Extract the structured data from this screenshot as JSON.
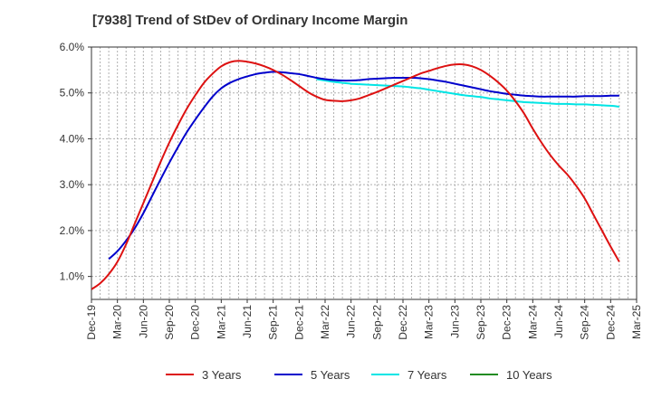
{
  "chart_data": {
    "type": "line",
    "title": "[7938]  Trend of StDev of Ordinary Income Margin",
    "xlabel": "",
    "ylabel": "",
    "ylim": [
      0.5,
      6.0
    ],
    "grid": true,
    "legend_position": "bottom",
    "x_ticks": [
      "Dec-19",
      "Mar-20",
      "Jun-20",
      "Sep-20",
      "Dec-20",
      "Mar-21",
      "Jun-21",
      "Sep-21",
      "Dec-21",
      "Mar-22",
      "Jun-22",
      "Sep-22",
      "Dec-22",
      "Mar-23",
      "Jun-23",
      "Sep-23",
      "Dec-23",
      "Mar-24",
      "Jun-24",
      "Sep-24",
      "Dec-24",
      "Mar-25"
    ],
    "y_ticks": [
      {
        "value": 1.0,
        "label": "1.0%"
      },
      {
        "value": 2.0,
        "label": "2.0%"
      },
      {
        "value": 3.0,
        "label": "3.0%"
      },
      {
        "value": 4.0,
        "label": "4.0%"
      },
      {
        "value": 5.0,
        "label": "5.0%"
      },
      {
        "value": 6.0,
        "label": "6.0%"
      }
    ],
    "series": [
      {
        "name": "3 Years",
        "color": "#dd1111",
        "points": [
          [
            "Dec-19",
            0.72
          ],
          [
            "Jan-20",
            0.85
          ],
          [
            "Feb-20",
            1.05
          ],
          [
            "Mar-20",
            1.32
          ],
          [
            "Apr-20",
            1.7
          ],
          [
            "May-20",
            2.15
          ],
          [
            "Jun-20",
            2.6
          ],
          [
            "Jul-20",
            3.05
          ],
          [
            "Aug-20",
            3.5
          ],
          [
            "Sep-20",
            3.92
          ],
          [
            "Oct-20",
            4.3
          ],
          [
            "Nov-20",
            4.65
          ],
          [
            "Dec-20",
            4.95
          ],
          [
            "Jan-21",
            5.22
          ],
          [
            "Feb-21",
            5.42
          ],
          [
            "Mar-21",
            5.58
          ],
          [
            "Apr-21",
            5.67
          ],
          [
            "May-21",
            5.7
          ],
          [
            "Jun-21",
            5.68
          ],
          [
            "Jul-21",
            5.64
          ],
          [
            "Aug-21",
            5.58
          ],
          [
            "Sep-21",
            5.5
          ],
          [
            "Oct-21",
            5.4
          ],
          [
            "Nov-21",
            5.28
          ],
          [
            "Dec-21",
            5.15
          ],
          [
            "Jan-22",
            5.02
          ],
          [
            "Feb-22",
            4.92
          ],
          [
            "Mar-22",
            4.85
          ],
          [
            "Apr-22",
            4.83
          ],
          [
            "May-22",
            4.82
          ],
          [
            "Jun-22",
            4.84
          ],
          [
            "Jul-22",
            4.88
          ],
          [
            "Aug-22",
            4.95
          ],
          [
            "Sep-22",
            5.02
          ],
          [
            "Oct-22",
            5.1
          ],
          [
            "Nov-22",
            5.18
          ],
          [
            "Dec-22",
            5.26
          ],
          [
            "Jan-23",
            5.34
          ],
          [
            "Feb-23",
            5.42
          ],
          [
            "Mar-23",
            5.48
          ],
          [
            "Apr-23",
            5.54
          ],
          [
            "May-23",
            5.59
          ],
          [
            "Jun-23",
            5.62
          ],
          [
            "Jul-23",
            5.62
          ],
          [
            "Aug-23",
            5.58
          ],
          [
            "Sep-23",
            5.5
          ],
          [
            "Oct-23",
            5.38
          ],
          [
            "Nov-23",
            5.23
          ],
          [
            "Dec-23",
            5.05
          ],
          [
            "Jan-24",
            4.82
          ],
          [
            "Feb-24",
            4.55
          ],
          [
            "Mar-24",
            4.22
          ],
          [
            "Apr-24",
            3.92
          ],
          [
            "May-24",
            3.65
          ],
          [
            "Jun-24",
            3.42
          ],
          [
            "Jul-24",
            3.22
          ],
          [
            "Aug-24",
            2.98
          ],
          [
            "Sep-24",
            2.7
          ],
          [
            "Oct-24",
            2.35
          ],
          [
            "Nov-24",
            2.0
          ],
          [
            "Dec-24",
            1.65
          ],
          [
            "Jan-25",
            1.32
          ]
        ]
      },
      {
        "name": "5 Years",
        "color": "#0000cc",
        "points": [
          [
            "Feb-20",
            1.38
          ],
          [
            "Mar-20",
            1.55
          ],
          [
            "Apr-20",
            1.78
          ],
          [
            "May-20",
            2.05
          ],
          [
            "Jun-20",
            2.38
          ],
          [
            "Jul-20",
            2.75
          ],
          [
            "Aug-20",
            3.12
          ],
          [
            "Sep-20",
            3.48
          ],
          [
            "Oct-20",
            3.82
          ],
          [
            "Nov-20",
            4.14
          ],
          [
            "Dec-20",
            4.42
          ],
          [
            "Jan-21",
            4.68
          ],
          [
            "Feb-21",
            4.92
          ],
          [
            "Mar-21",
            5.1
          ],
          [
            "Apr-21",
            5.22
          ],
          [
            "May-21",
            5.3
          ],
          [
            "Jun-21",
            5.36
          ],
          [
            "Jul-21",
            5.41
          ],
          [
            "Aug-21",
            5.44
          ],
          [
            "Sep-21",
            5.46
          ],
          [
            "Oct-21",
            5.45
          ],
          [
            "Nov-21",
            5.43
          ],
          [
            "Dec-21",
            5.41
          ],
          [
            "Jan-22",
            5.37
          ],
          [
            "Feb-22",
            5.33
          ],
          [
            "Mar-22",
            5.3
          ],
          [
            "Apr-22",
            5.28
          ],
          [
            "May-22",
            5.27
          ],
          [
            "Jun-22",
            5.27
          ],
          [
            "Jul-22",
            5.28
          ],
          [
            "Aug-22",
            5.3
          ],
          [
            "Sep-22",
            5.31
          ],
          [
            "Oct-22",
            5.32
          ],
          [
            "Nov-22",
            5.33
          ],
          [
            "Dec-22",
            5.33
          ],
          [
            "Jan-23",
            5.33
          ],
          [
            "Feb-23",
            5.32
          ],
          [
            "Mar-23",
            5.3
          ],
          [
            "Apr-23",
            5.27
          ],
          [
            "May-23",
            5.24
          ],
          [
            "Jun-23",
            5.2
          ],
          [
            "Jul-23",
            5.16
          ],
          [
            "Aug-23",
            5.12
          ],
          [
            "Sep-23",
            5.08
          ],
          [
            "Oct-23",
            5.04
          ],
          [
            "Nov-23",
            5.01
          ],
          [
            "Dec-23",
            4.98
          ],
          [
            "Jan-24",
            4.96
          ],
          [
            "Feb-24",
            4.94
          ],
          [
            "Mar-24",
            4.93
          ],
          [
            "Apr-24",
            4.92
          ],
          [
            "May-24",
            4.92
          ],
          [
            "Jun-24",
            4.92
          ],
          [
            "Jul-24",
            4.92
          ],
          [
            "Aug-24",
            4.92
          ],
          [
            "Sep-24",
            4.93
          ],
          [
            "Oct-24",
            4.93
          ],
          [
            "Nov-24",
            4.93
          ],
          [
            "Dec-24",
            4.94
          ],
          [
            "Jan-25",
            4.94
          ]
        ]
      },
      {
        "name": "7 Years",
        "color": "#00e5e5",
        "points": [
          [
            "Feb-22",
            5.3
          ],
          [
            "Mar-22",
            5.27
          ],
          [
            "Apr-22",
            5.24
          ],
          [
            "May-22",
            5.22
          ],
          [
            "Jun-22",
            5.2
          ],
          [
            "Jul-22",
            5.19
          ],
          [
            "Aug-22",
            5.18
          ],
          [
            "Sep-22",
            5.17
          ],
          [
            "Oct-22",
            5.16
          ],
          [
            "Nov-22",
            5.15
          ],
          [
            "Dec-22",
            5.14
          ],
          [
            "Jan-23",
            5.12
          ],
          [
            "Feb-23",
            5.1
          ],
          [
            "Mar-23",
            5.07
          ],
          [
            "Apr-23",
            5.04
          ],
          [
            "May-23",
            5.01
          ],
          [
            "Jun-23",
            4.98
          ],
          [
            "Jul-23",
            4.95
          ],
          [
            "Aug-23",
            4.93
          ],
          [
            "Sep-23",
            4.91
          ],
          [
            "Oct-23",
            4.88
          ],
          [
            "Nov-23",
            4.86
          ],
          [
            "Dec-23",
            4.84
          ],
          [
            "Jan-24",
            4.82
          ],
          [
            "Feb-24",
            4.8
          ],
          [
            "Mar-24",
            4.79
          ],
          [
            "Apr-24",
            4.78
          ],
          [
            "May-24",
            4.77
          ],
          [
            "Jun-24",
            4.76
          ],
          [
            "Jul-24",
            4.76
          ],
          [
            "Aug-24",
            4.75
          ],
          [
            "Sep-24",
            4.75
          ],
          [
            "Oct-24",
            4.74
          ],
          [
            "Nov-24",
            4.73
          ],
          [
            "Dec-24",
            4.72
          ],
          [
            "Jan-25",
            4.7
          ]
        ]
      },
      {
        "name": "10 Years",
        "color": "#228b22",
        "points": []
      }
    ]
  }
}
